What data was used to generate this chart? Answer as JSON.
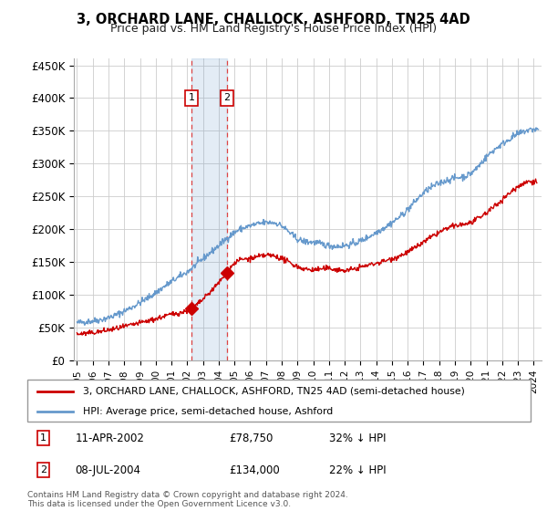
{
  "title": "3, ORCHARD LANE, CHALLOCK, ASHFORD, TN25 4AD",
  "subtitle": "Price paid vs. HM Land Registry's House Price Index (HPI)",
  "ylim": [
    0,
    460000
  ],
  "xlim_start": 1994.8,
  "xlim_end": 2024.5,
  "yticks": [
    0,
    50000,
    100000,
    150000,
    200000,
    250000,
    300000,
    350000,
    400000,
    450000
  ],
  "ytick_labels": [
    "£0",
    "£50K",
    "£100K",
    "£150K",
    "£200K",
    "£250K",
    "£300K",
    "£350K",
    "£400K",
    "£450K"
  ],
  "hpi_color": "#6699cc",
  "price_color": "#cc0000",
  "sale1_x": 2002.27,
  "sale1_y": 78750,
  "sale1_label": "1",
  "sale1_date": "11-APR-2002",
  "sale1_price": "£78,750",
  "sale1_hpi": "32% ↓ HPI",
  "sale2_x": 2004.52,
  "sale2_y": 134000,
  "sale2_label": "2",
  "sale2_date": "08-JUL-2004",
  "sale2_price": "£134,000",
  "sale2_hpi": "22% ↓ HPI",
  "legend_line1": "3, ORCHARD LANE, CHALLOCK, ASHFORD, TN25 4AD (semi-detached house)",
  "legend_line2": "HPI: Average price, semi-detached house, Ashford",
  "footer": "Contains HM Land Registry data © Crown copyright and database right 2024.\nThis data is licensed under the Open Government Licence v3.0.",
  "background_color": "#ffffff",
  "grid_color": "#cccccc"
}
